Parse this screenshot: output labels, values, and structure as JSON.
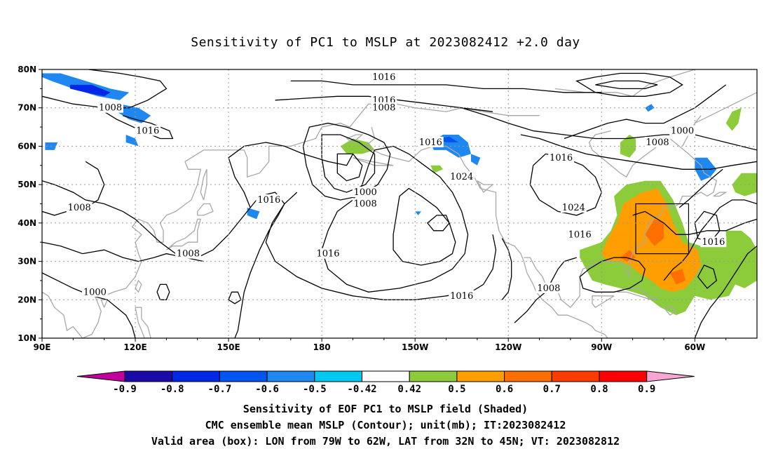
{
  "title": "Sensitivity of PC1 to MSLP at 2023082412 +2.0 day",
  "lat_labels": [
    "80N",
    "70N",
    "60N",
    "50N",
    "40N",
    "30N",
    "20N",
    "10N"
  ],
  "lon_labels": [
    "90E",
    "120E",
    "150E",
    "180",
    "150W",
    "120W",
    "90W",
    "60W"
  ],
  "contour_labels": [
    {
      "text": "1016",
      "lon": -160,
      "lat": 78
    },
    {
      "text": "1016",
      "lon": -160,
      "lat": 72
    },
    {
      "text": "1008",
      "lon": -160,
      "lat": 70
    },
    {
      "text": "1008",
      "lon": 112,
      "lat": 70
    },
    {
      "text": "1016",
      "lon": 124,
      "lat": 64
    },
    {
      "text": "1016",
      "lon": -145,
      "lat": 61
    },
    {
      "text": "1000",
      "lon": -64,
      "lat": 64
    },
    {
      "text": "1008",
      "lon": -72,
      "lat": 61
    },
    {
      "text": "1016",
      "lon": -103,
      "lat": 57
    },
    {
      "text": "1024",
      "lon": -135,
      "lat": 52
    },
    {
      "text": "1000",
      "lon": -166,
      "lat": 48
    },
    {
      "text": "1008",
      "lon": -166,
      "lat": 45
    },
    {
      "text": "1008",
      "lon": 102,
      "lat": 44
    },
    {
      "text": "1016",
      "lon": 163,
      "lat": 46
    },
    {
      "text": "1024",
      "lon": -99,
      "lat": 44
    },
    {
      "text": "1016",
      "lon": -97,
      "lat": 37
    },
    {
      "text": "1016",
      "lon": -54,
      "lat": 35
    },
    {
      "text": "1008",
      "lon": 137,
      "lat": 32
    },
    {
      "text": "1016",
      "lon": -178,
      "lat": 32
    },
    {
      "text": "1000",
      "lon": 107,
      "lat": 22
    },
    {
      "text": "1016",
      "lon": -135,
      "lat": 21
    },
    {
      "text": "1008",
      "lon": -107,
      "lat": 23
    }
  ],
  "colorbar": {
    "labels": [
      "-0.9",
      "-0.8",
      "-0.7",
      "-0.6",
      "-0.5",
      "-0.42",
      "0.42",
      "0.5",
      "0.6",
      "0.7",
      "0.8",
      "0.9"
    ],
    "colors": [
      "#c2009c",
      "#1a0aa8",
      "#0028e6",
      "#0055f0",
      "#1e88f0",
      "#00c8f0",
      "#ffffff",
      "#8ccc3a",
      "#ff9e00",
      "#ff6e00",
      "#ff3c00",
      "#ff0000",
      "#f7a6d2"
    ]
  },
  "valid_box": {
    "lon_min": -79,
    "lon_max": -62,
    "lat_min": 32,
    "lat_max": 45
  },
  "caption": {
    "line1": "Sensitivity of EOF PC1 to MSLP field (Shaded)",
    "line2": "CMC ensemble mean MSLP (Contour); unit(mb); IT:2023082412",
    "line3": "Valid area (box): LON from 79W to 62W, LAT from 32N to 45N; VT: 2023082812"
  }
}
